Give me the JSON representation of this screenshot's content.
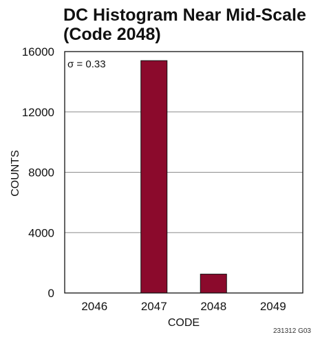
{
  "chart_data": {
    "type": "bar",
    "title_lines": [
      "DC Histogram Near Mid-Scale",
      "(Code 2048)"
    ],
    "xlabel": "CODE",
    "ylabel": "COUNTS",
    "categories": [
      "2046",
      "2047",
      "2048",
      "2049"
    ],
    "values": [
      0,
      15400,
      1250,
      0
    ],
    "ylim": [
      0,
      16000
    ],
    "yticks": [
      0,
      4000,
      8000,
      12000,
      16000
    ],
    "grid": true,
    "annotation": "σ = 0.33",
    "figure_id": "231312 G03",
    "bar_color": "#8b0a2c",
    "grid_color": "#8c8c8c"
  }
}
